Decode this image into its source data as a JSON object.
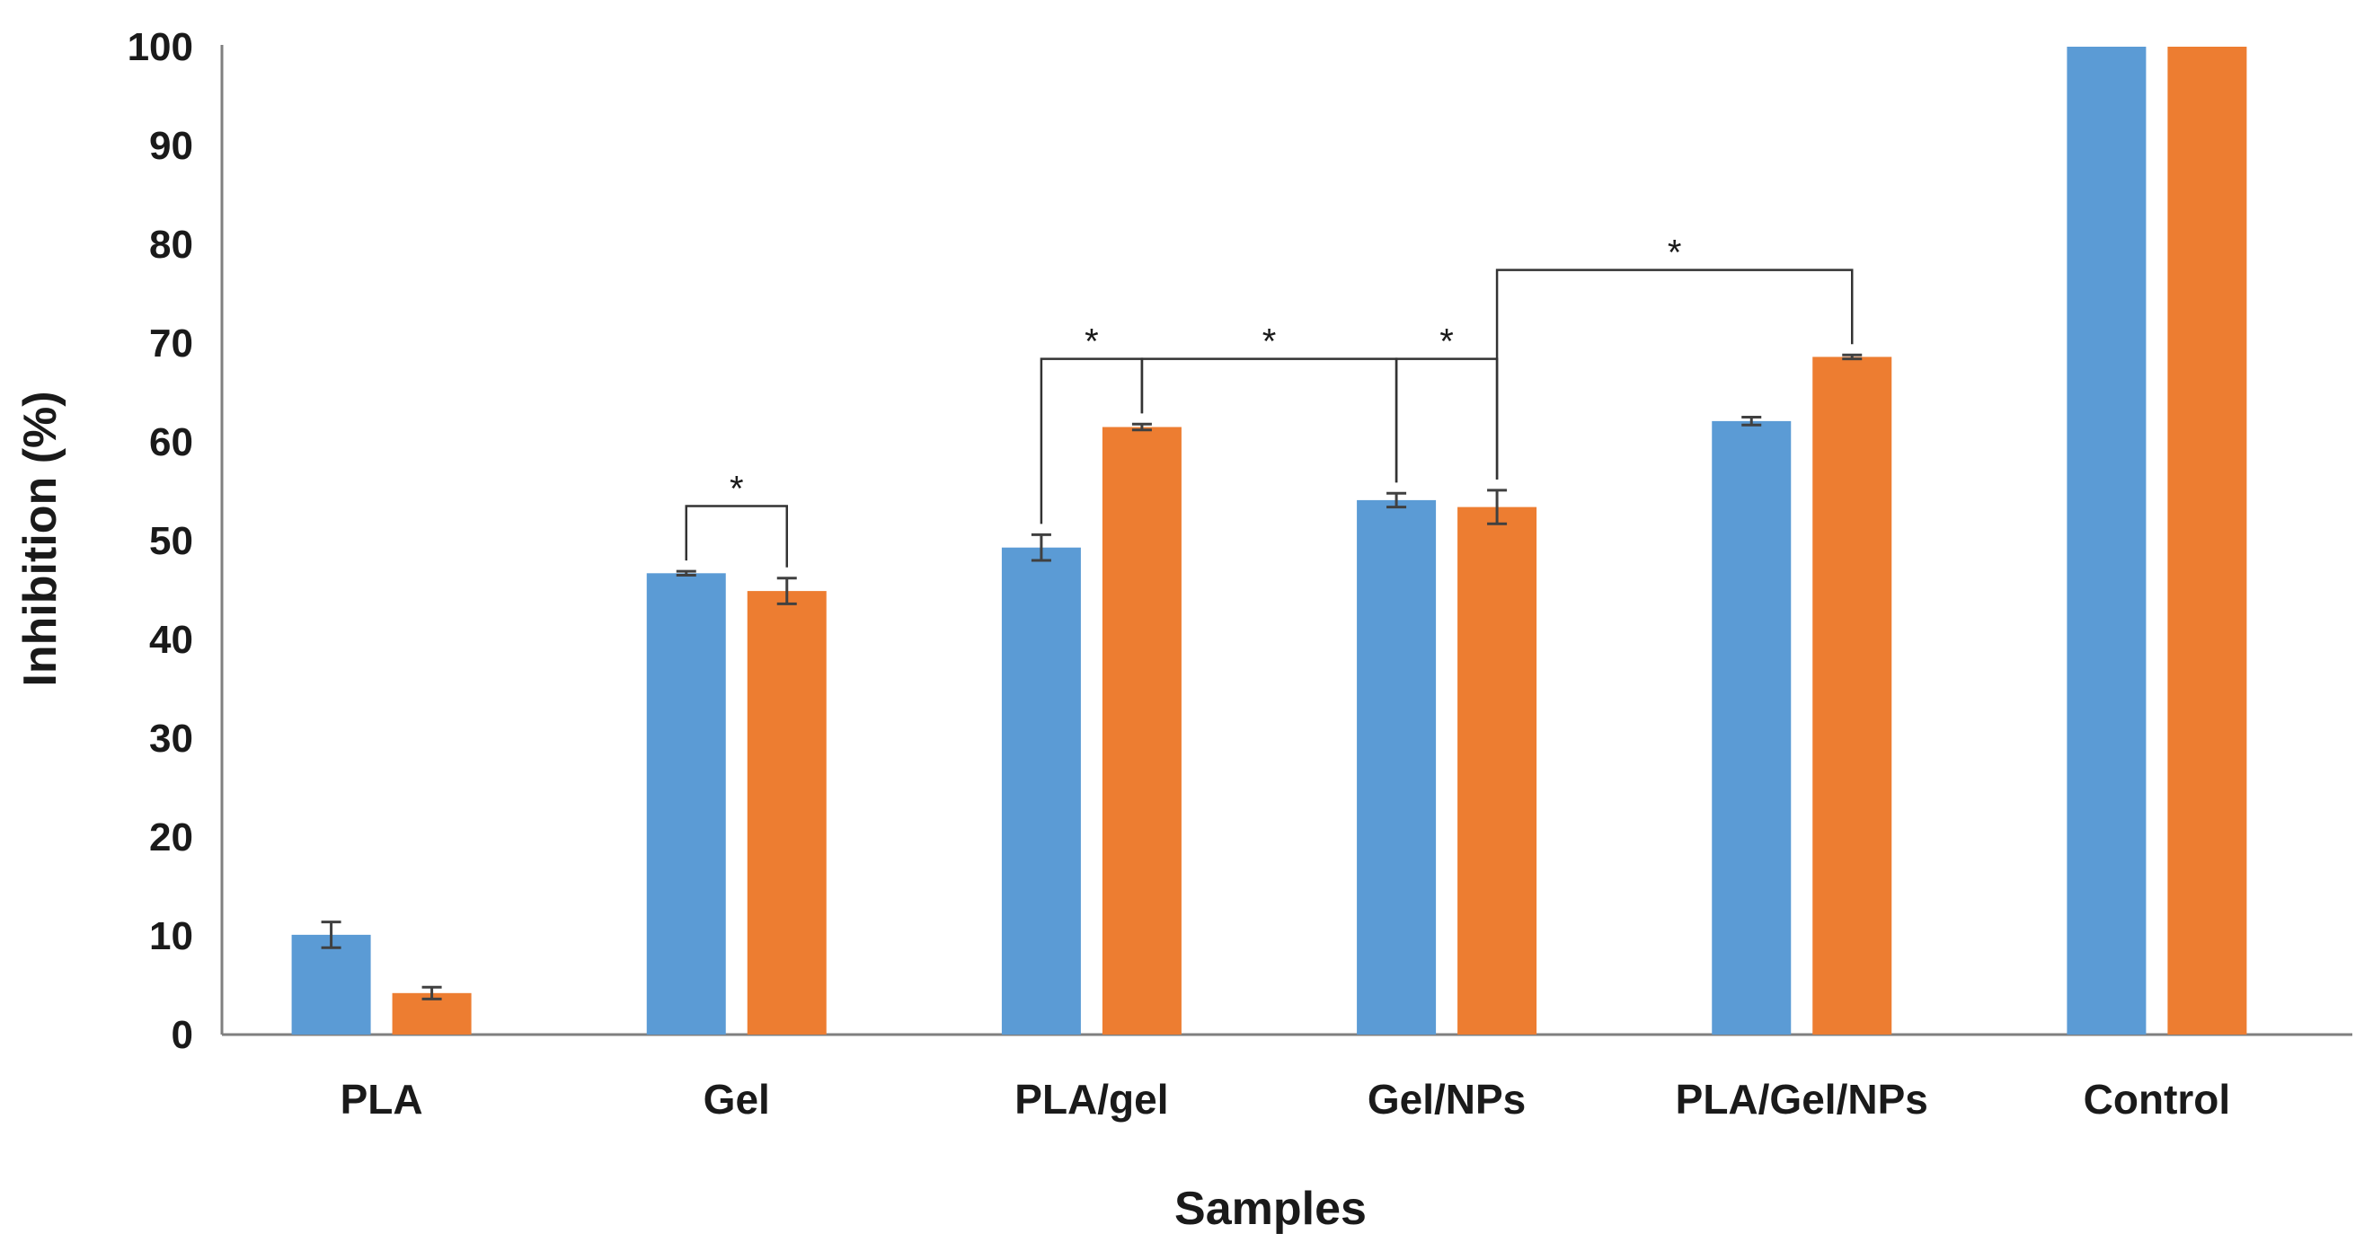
{
  "chart_data": {
    "type": "bar",
    "title": "",
    "xlabel": "Samples",
    "ylabel": "Inhibition (%)",
    "ylim": [
      0,
      100
    ],
    "yticks": [
      "0",
      "10",
      "20",
      "30",
      "40",
      "50",
      "60",
      "70",
      "80",
      "90",
      "100"
    ],
    "grid": false,
    "legend": "none",
    "categories": [
      "PLA",
      "Gel",
      "PLA/gel",
      "Gel/NPs",
      "PLA/Gel/NPs",
      "Control"
    ],
    "series": [
      {
        "color": "#5b9bd5",
        "values": [
          10.1,
          46.7,
          49.3,
          54.1,
          62.1,
          100
        ],
        "errors": [
          1.3,
          0.2,
          1.3,
          0.7,
          0.4,
          null
        ]
      },
      {
        "color": "#ed7d31",
        "values": [
          4.2,
          44.9,
          61.5,
          53.4,
          68.6,
          100
        ],
        "errors": [
          0.6,
          1.3,
          0.3,
          1.7,
          0.2,
          null
        ]
      }
    ],
    "significance": [
      {
        "label": "*",
        "from": [
          1,
          0
        ],
        "to": [
          1,
          1
        ],
        "level": 53.5
      },
      {
        "label": "*",
        "from": [
          2,
          0
        ],
        "to": [
          2,
          1
        ],
        "level": 68.4
      },
      {
        "label": "*",
        "from": [
          2,
          1
        ],
        "to": [
          3,
          0
        ],
        "level": 68.4
      },
      {
        "label": "*",
        "from": [
          3,
          0
        ],
        "to": [
          3,
          1
        ],
        "level": 68.4
      },
      {
        "label": "*",
        "from": [
          3,
          1
        ],
        "to": [
          4,
          1
        ],
        "level": 77.4
      }
    ],
    "colors": {
      "axis": "#7f7f7f",
      "text": "#1a1a1a",
      "errorbar": "#404040"
    }
  }
}
